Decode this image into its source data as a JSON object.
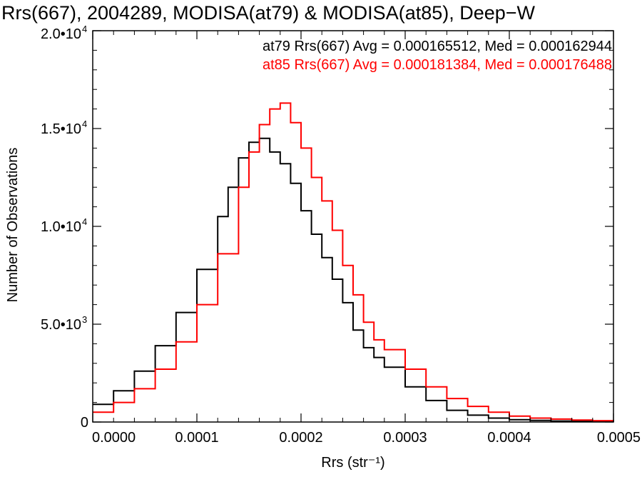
{
  "chart_data": {
    "type": "line",
    "title": "Rrs(667), 2004289, MODISA(at79) & MODISA(at85), Deep−W",
    "xlabel": "Rrs (str⁻¹)",
    "ylabel": "Number of Observations",
    "xlim": [
      0,
      0.0005
    ],
    "ylim": [
      0,
      20000
    ],
    "x_ticks": [
      "0.0000",
      "0.0001",
      "0.0002",
      "0.0003",
      "0.0004",
      "0.0005"
    ],
    "y_ticks": [
      {
        "mant": "0",
        "exp": ""
      },
      {
        "mant": "5.0•10",
        "exp": "3"
      },
      {
        "mant": "1.0•10",
        "exp": "4"
      },
      {
        "mant": "1.5•10",
        "exp": "4"
      },
      {
        "mant": "2.0•10",
        "exp": "4"
      }
    ],
    "grid": false,
    "annotations": [
      {
        "text": "at79 Rrs(667) Avg = 0.000165512, Med = 0.000162944",
        "color": "#000000"
      },
      {
        "text": "at85 Rrs(667) Avg = 0.000181384, Med = 0.000176488",
        "color": "#ff0000"
      }
    ],
    "series": [
      {
        "color": "#000000",
        "x": [
          0.0,
          2e-05,
          4e-05,
          6e-05,
          8e-05,
          0.0001,
          0.00012,
          0.00013,
          0.00014,
          0.00015,
          0.00016,
          0.00017,
          0.00018,
          0.00019,
          0.0002,
          0.00021,
          0.00022,
          0.00023,
          0.00024,
          0.00025,
          0.00026,
          0.00027,
          0.00028,
          0.0003,
          0.00032,
          0.00034,
          0.00036,
          0.00038,
          0.0004,
          0.00042,
          0.00044,
          0.00046,
          0.00048,
          0.0005
        ],
        "y": [
          900,
          1600,
          2600,
          3900,
          5600,
          7800,
          10500,
          12000,
          13500,
          14300,
          14500,
          13800,
          13200,
          12200,
          10800,
          9600,
          8400,
          7300,
          6100,
          4700,
          3800,
          3300,
          2800,
          1800,
          1100,
          600,
          350,
          200,
          120,
          80,
          50,
          40,
          30,
          20
        ]
      },
      {
        "color": "#ff0000",
        "x": [
          0.0,
          2e-05,
          4e-05,
          6e-05,
          8e-05,
          0.0001,
          0.00012,
          0.00014,
          0.00015,
          0.00016,
          0.00017,
          0.00018,
          0.00019,
          0.0002,
          0.00021,
          0.00022,
          0.00023,
          0.00024,
          0.00025,
          0.00026,
          0.00027,
          0.00028,
          0.0003,
          0.00032,
          0.00034,
          0.00036,
          0.00038,
          0.0004,
          0.00042,
          0.00044,
          0.00046,
          0.00048,
          0.0005
        ],
        "y": [
          500,
          1000,
          1700,
          2700,
          4100,
          6000,
          8600,
          12000,
          13800,
          15200,
          16000,
          16300,
          15300,
          14000,
          12500,
          11300,
          9800,
          8000,
          6500,
          5100,
          4200,
          3700,
          2700,
          1800,
          1200,
          800,
          500,
          300,
          200,
          150,
          100,
          70,
          50
        ]
      }
    ]
  }
}
